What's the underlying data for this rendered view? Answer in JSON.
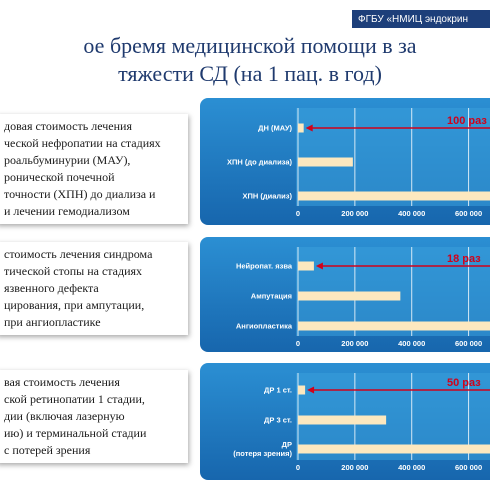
{
  "header": {
    "organization": "ФГБУ «НМИЦ эндокрин"
  },
  "title_lines": [
    "ое бремя медицинской помощи в за",
    "тяжести СД (на 1 пац. в год)"
  ],
  "text_blocks": [
    [
      "довая стоимость лечения",
      "ческой нефропатии на стадиях",
      "роальбуминурии (МАУ),",
      "ронической почечной",
      "точности (ХПН) до диализа и",
      "и лечении гемодиализом"
    ],
    [
      "стоимость лечения синдрома",
      "тической стопы на стадиях",
      "язвенного дефекта",
      "цирования, при ампутации,",
      "при ангиопластике"
    ],
    [
      "вая стоимость лечения",
      "ской ретинопатии 1 стадии,",
      "дии (включая лазерную",
      "ию) и терминальной стадии",
      "с потерей зрения"
    ]
  ],
  "chart_data": [
    {
      "type": "bar",
      "orientation": "horizontal",
      "categories": [
        "ДН (МАУ)",
        "ХПН (до диализа)",
        "ХПН (диализ)"
      ],
      "values": [
        20000,
        193000,
        700000
      ],
      "color": "#fce8bf",
      "xlim": [
        0,
        700000
      ],
      "xticks": [
        0,
        {
          "value": 200000,
          "label": "200 000"
        },
        {
          "value": 400000,
          "label": "400 000"
        },
        {
          "value": 600000,
          "label": "600 000"
        }
      ],
      "grid": true,
      "annotation": "100 раз",
      "annotation_color": "#d0021b"
    },
    {
      "type": "bar",
      "orientation": "horizontal",
      "categories": [
        "Нейропат. язва",
        "Ампутация",
        "Ангиопластика"
      ],
      "values": [
        56000,
        360000,
        700000
      ],
      "color": "#fce8bf",
      "xlim": [
        0,
        700000
      ],
      "xticks": [
        0,
        {
          "value": 200000,
          "label": "200 000"
        },
        {
          "value": 400000,
          "label": "400 000"
        },
        {
          "value": 600000,
          "label": "600 000"
        }
      ],
      "grid": true,
      "annotation": "18 раз",
      "annotation_color": "#d0021b"
    },
    {
      "type": "bar",
      "orientation": "horizontal",
      "categories": [
        "ДР 1 ст.",
        "ДР 3 ст.",
        "ДР\n(потеря зрения)"
      ],
      "values": [
        25000,
        310000,
        700000
      ],
      "color": "#fce8bf",
      "xlim": [
        0,
        700000
      ],
      "xticks": [
        0,
        {
          "value": 200000,
          "label": "200 000"
        },
        {
          "value": 400000,
          "label": "400 000"
        },
        {
          "value": 600000,
          "label": "600 000"
        }
      ],
      "grid": true,
      "annotation": "50 раз",
      "annotation_color": "#d0021b"
    }
  ]
}
